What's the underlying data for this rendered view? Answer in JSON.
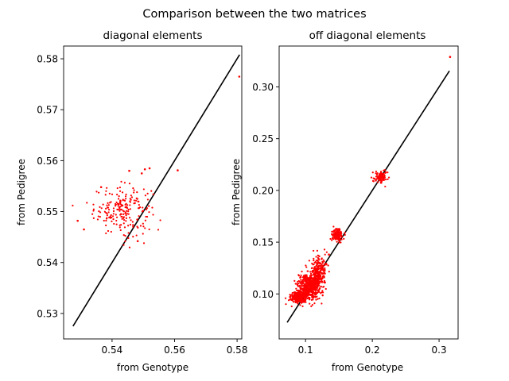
{
  "figure": {
    "suptitle": "Comparison between the two matrices"
  },
  "chart_data": [
    {
      "type": "scatter",
      "title": "diagonal elements",
      "xlabel": "from Genotype",
      "ylabel": "from Pedigree",
      "xlim": [
        0.5245,
        0.5815
      ],
      "ylim": [
        0.525,
        0.5825
      ],
      "xticks": [
        0.54,
        0.56,
        0.58
      ],
      "yticks": [
        0.53,
        0.54,
        0.55,
        0.56,
        0.57,
        0.58
      ],
      "tick_format": 2,
      "colors": {
        "points": "#ff0000",
        "line": "#000000"
      },
      "reference_line": {
        "x": [
          0.5275,
          0.5808
        ],
        "y": [
          0.5275,
          0.5808
        ]
      },
      "scatter_clusters": [
        {
          "cx": 0.5435,
          "cy": 0.5503,
          "sx": 0.0046,
          "sy": 0.0024,
          "n": 210
        }
      ],
      "series": [
        {
          "x": [
            0.5807,
            0.5482,
            0.552,
            0.5495,
            0.5505,
            0.5455,
            0.561,
            0.5365,
            0.529,
            0.531
          ],
          "y": [
            0.5765,
            0.5442,
            0.5585,
            0.5575,
            0.5583,
            0.558,
            0.5581,
            0.5548,
            0.5482,
            0.5465
          ]
        }
      ]
    },
    {
      "type": "scatter",
      "title": "off diagonal elements",
      "xlabel": "from Genotype",
      "ylabel": "from Pedigree",
      "xlim": [
        0.0605,
        0.3285
      ],
      "ylim": [
        0.0565,
        0.3395
      ],
      "xticks": [
        0.1,
        0.2,
        0.3
      ],
      "yticks": [
        0.1,
        0.15,
        0.2,
        0.25,
        0.3
      ],
      "tick_format_x": 1,
      "tick_format_y": 2,
      "colors": {
        "points": "#ff0000",
        "line": "#000000"
      },
      "reference_line": {
        "x": [
          0.0725,
          0.3155
        ],
        "y": [
          0.0725,
          0.3155
        ]
      },
      "scatter_clusters": [
        {
          "cx": 0.09,
          "cy": 0.097,
          "sx": 0.006,
          "sy": 0.003,
          "n": 300
        },
        {
          "cx": 0.105,
          "cy": 0.107,
          "sx": 0.008,
          "sy": 0.006,
          "n": 500
        },
        {
          "cx": 0.12,
          "cy": 0.12,
          "sx": 0.006,
          "sy": 0.008,
          "n": 250
        },
        {
          "cx": 0.148,
          "cy": 0.157,
          "sx": 0.004,
          "sy": 0.003,
          "n": 150
        },
        {
          "cx": 0.212,
          "cy": 0.213,
          "sx": 0.005,
          "sy": 0.003,
          "n": 100
        }
      ],
      "series": [
        {
          "x": [
            0.3165,
            0.135,
            0.1,
            0.098
          ],
          "y": [
            0.329,
            0.138,
            0.115,
            0.108
          ]
        }
      ]
    }
  ]
}
